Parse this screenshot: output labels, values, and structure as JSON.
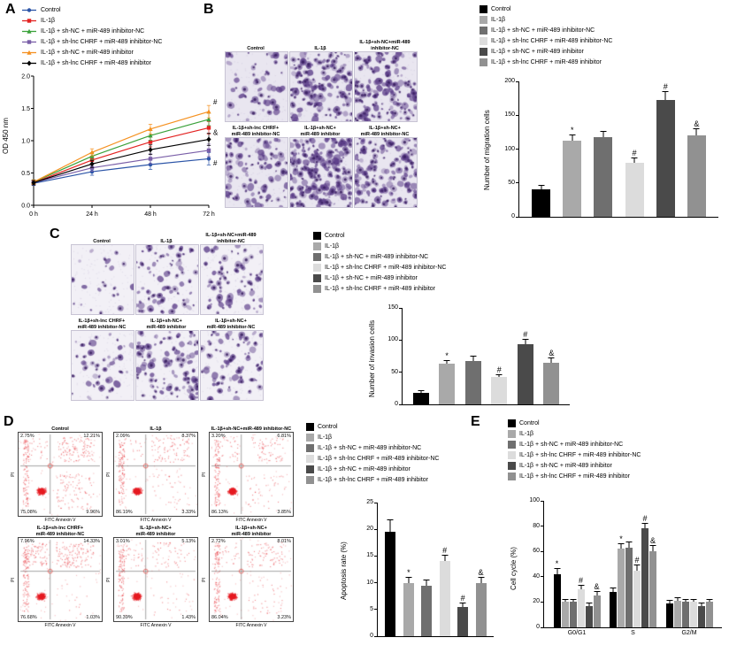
{
  "groups": [
    "Control",
    "IL-1β",
    "IL-1β + sh-NC + miR-489 inhibitor-NC",
    "IL-1β + sh-lnc CHRF + miR-489 inhibitor-NC",
    "IL-1β + sh-NC + miR-489 inhibitor",
    "IL-1β + sh-lnc CHRF + miR-489 inhibitor"
  ],
  "colors": {
    "line": [
      "#2b54a7",
      "#e32322",
      "#3aa13a",
      "#7a5fa8",
      "#f59120",
      "#000000"
    ],
    "bar": [
      "#000000",
      "#a9a9a9",
      "#6f6f6f",
      "#dcdcdc",
      "#4a4a4a",
      "#919191"
    ],
    "flow_dot": "#e8251f",
    "stain": "#5d3f8a"
  },
  "markers": [
    "c",
    "s",
    "t",
    "s",
    "t",
    "d"
  ],
  "panels": {
    "A": {
      "label": "A"
    },
    "B": {
      "label": "B",
      "captions": [
        "Control",
        "IL-1β",
        "IL-1β+sh-NC+miR-489 inhibitor-NC",
        "IL-1β+sh-lnc CHRF+\nmiR-489 inhibitor-NC",
        "IL-1β+sh-NC+\nmiR-489 inhibitor",
        "IL-1β+sh-NC+\nmiR-489 inhibitor-NC"
      ],
      "densities": [
        55,
        150,
        160,
        100,
        220,
        160
      ]
    },
    "C": {
      "label": "C",
      "captions": [
        "Control",
        "IL-1β",
        "IL-1β+sh-NC+miR-489 inhibitor-NC",
        "IL-1β+sh-lnc CHRF+\nmiR-489 inhibitor-NC",
        "IL-1β+sh-NC+\nmiR-489 inhibitor",
        "IL-1β+sh-NC+\nmiR-489 inhibitor-NC"
      ],
      "densities": [
        22,
        70,
        75,
        45,
        110,
        70
      ]
    },
    "D": {
      "label": "D"
    },
    "E": {
      "label": "E"
    }
  },
  "flow": {
    "xlabel": "FITC Annexin V",
    "ylabel": "PI",
    "plots": [
      {
        "caption": "Control",
        "ul": "2.75%",
        "ur": "12.21%",
        "ll": "75.08%",
        "lr": "9.96%"
      },
      {
        "caption": "IL-1β",
        "ul": "2.09%",
        "ur": "8.37%",
        "ll": "86.19%",
        "lr": "3.33%"
      },
      {
        "caption": "IL-1β+sh-NC+miR-489 inhibitor-NC",
        "ul": "3.20%",
        "ur": "6.81%",
        "ll": "86.13%",
        "lr": "3.85%"
      },
      {
        "caption": "IL-1β+sh-lnc CHRF+\nmiR-489 inhibitor-NC",
        "ul": "7.96%",
        "ur": "14.33%",
        "ll": "76.68%",
        "lr": "1.03%"
      },
      {
        "caption": "IL-1β+sh-NC+\nmiR-489 inhibitor",
        "ul": "3.01%",
        "ur": "5.13%",
        "ll": "90.39%",
        "lr": "1.43%"
      },
      {
        "caption": "IL-1β+sh-NC+\nmiR-489 inhibitor",
        "ul": "2.72%",
        "ur": "8.01%",
        "ll": "86.04%",
        "lr": "3.23%"
      }
    ]
  },
  "chart_data": [
    {
      "id": "proliferation",
      "type": "line",
      "ylabel": "OD 450 nm",
      "x": [
        "0 h",
        "24 h",
        "48 h",
        "72 h"
      ],
      "ylim": [
        0,
        2.0
      ],
      "yticks": [
        "0.0",
        "0.5",
        "1.0",
        "1.5",
        "2.0"
      ],
      "series": [
        {
          "name": "Control",
          "values": [
            0.34,
            0.52,
            0.63,
            0.72
          ]
        },
        {
          "name": "IL-1β",
          "values": [
            0.35,
            0.7,
            0.98,
            1.2
          ]
        },
        {
          "name": "IL-1β + sh-NC + miR-489 inhibitor-NC",
          "values": [
            0.36,
            0.76,
            1.08,
            1.33
          ]
        },
        {
          "name": "IL-1β + sh-lnc CHRF + miR-489 inhibitor-NC",
          "values": [
            0.35,
            0.58,
            0.72,
            0.85
          ]
        },
        {
          "name": "IL-1β + sh-NC + miR-489 inhibitor",
          "values": [
            0.36,
            0.82,
            1.18,
            1.45
          ]
        },
        {
          "name": "IL-1β + sh-lnc CHRF + miR-489 inhibitor",
          "values": [
            0.35,
            0.64,
            0.86,
            1.02
          ]
        }
      ],
      "annotations": [
        {
          "text": "#",
          "xi": 3,
          "y": 1.6
        },
        {
          "text": "&",
          "xi": 3,
          "y": 1.13
        },
        {
          "text": "#",
          "xi": 3,
          "y": 0.66
        }
      ]
    },
    {
      "id": "migration",
      "type": "bar",
      "ylabel": "Number of migration cells",
      "ylim": [
        0,
        200
      ],
      "yticks": [
        "0",
        "50",
        "100",
        "150",
        "200"
      ],
      "values": [
        40,
        112,
        118,
        80,
        172,
        120
      ],
      "errors": [
        6,
        8,
        8,
        6,
        12,
        10
      ],
      "sig": [
        "",
        "*",
        "",
        "#",
        "#",
        "&"
      ]
    },
    {
      "id": "invasion",
      "type": "bar",
      "ylabel": "Number of invasion cells",
      "ylim": [
        0,
        150
      ],
      "yticks": [
        "0",
        "50",
        "100",
        "150"
      ],
      "values": [
        18,
        63,
        68,
        42,
        93,
        65
      ],
      "errors": [
        3,
        5,
        6,
        4,
        8,
        6
      ],
      "sig": [
        "",
        "*",
        "",
        "#",
        "#",
        "&"
      ]
    },
    {
      "id": "apoptosis",
      "type": "bar",
      "ylabel": "Apoptosis rate (%)",
      "ylim": [
        0,
        25
      ],
      "yticks": [
        "0",
        "5",
        "10",
        "15",
        "20",
        "25"
      ],
      "values": [
        19.5,
        10,
        9.5,
        14,
        5.5,
        10
      ],
      "errors": [
        2.2,
        1,
        1,
        1,
        0.7,
        1
      ],
      "sig": [
        "",
        "*",
        "",
        "#",
        "#",
        "&"
      ]
    },
    {
      "id": "cell_cycle",
      "type": "bar-grouped",
      "ylabel": "Cell cycle (%)",
      "ylim": [
        0,
        100
      ],
      "yticks": [
        "0",
        "20",
        "40",
        "60",
        "80",
        "100"
      ],
      "categories": [
        "G0/G1",
        "S",
        "G2/M"
      ],
      "series": [
        {
          "name": "Control",
          "values": [
            42,
            28,
            19
          ]
        },
        {
          "name": "IL-1β",
          "values": [
            20,
            62,
            21
          ]
        },
        {
          "name": "IL-1β + sh-NC + miR-489 inhibitor-NC",
          "values": [
            20,
            63,
            20
          ]
        },
        {
          "name": "IL-1β + sh-lnc CHRF + miR-489 inhibitor-NC",
          "values": [
            30,
            45,
            20
          ]
        },
        {
          "name": "IL-1β + sh-NC + miR-489 inhibitor",
          "values": [
            17,
            78,
            17
          ]
        },
        {
          "name": "IL-1β + sh-lnc CHRF + miR-489 inhibitor",
          "values": [
            25,
            60,
            20
          ]
        }
      ],
      "errors": [
        [
          4,
          3,
          2
        ],
        [
          2,
          4,
          2
        ],
        [
          2,
          4,
          2
        ],
        [
          3,
          4,
          2
        ],
        [
          2,
          4,
          2
        ],
        [
          3,
          4,
          2
        ]
      ],
      "sig": [
        [
          "*",
          "",
          "",
          "#",
          "",
          "&"
        ],
        [
          "",
          "*",
          "",
          "#",
          "#",
          "&"
        ],
        [
          "",
          "",
          "",
          "",
          "",
          ""
        ]
      ]
    }
  ]
}
